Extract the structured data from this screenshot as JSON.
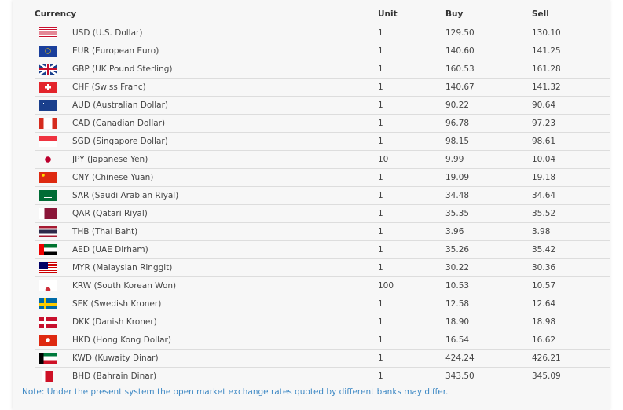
{
  "headers": {
    "currency": "Currency",
    "unit": "Unit",
    "buy": "Buy",
    "sell": "Sell"
  },
  "rows": [
    {
      "flag": "us-flag-icon",
      "name": "USD (U.S. Dollar)",
      "unit": "1",
      "buy": "129.50",
      "sell": "130.10"
    },
    {
      "flag": "eu-flag-icon",
      "name": "EUR (European Euro)",
      "unit": "1",
      "buy": "140.60",
      "sell": "141.25"
    },
    {
      "flag": "uk-flag-icon",
      "name": "GBP (UK Pound Sterling)",
      "unit": "1",
      "buy": "160.53",
      "sell": "161.28"
    },
    {
      "flag": "ch-flag-icon",
      "name": "CHF (Swiss Franc)",
      "unit": "1",
      "buy": "140.67",
      "sell": "141.32"
    },
    {
      "flag": "au-flag-icon",
      "name": "AUD (Australian Dollar)",
      "unit": "1",
      "buy": "90.22",
      "sell": "90.64"
    },
    {
      "flag": "ca-flag-icon",
      "name": "CAD (Canadian Dollar)",
      "unit": "1",
      "buy": "96.78",
      "sell": "97.23"
    },
    {
      "flag": "sg-flag-icon",
      "name": "SGD (Singapore Dollar)",
      "unit": "1",
      "buy": "98.15",
      "sell": "98.61"
    },
    {
      "flag": "jp-flag-icon",
      "name": "JPY (Japanese Yen)",
      "unit": "10",
      "buy": "9.99",
      "sell": "10.04"
    },
    {
      "flag": "cn-flag-icon",
      "name": "CNY (Chinese Yuan)",
      "unit": "1",
      "buy": "19.09",
      "sell": "19.18"
    },
    {
      "flag": "sa-flag-icon",
      "name": "SAR (Saudi Arabian Riyal)",
      "unit": "1",
      "buy": "34.48",
      "sell": "34.64"
    },
    {
      "flag": "qa-flag-icon",
      "name": "QAR (Qatari Riyal)",
      "unit": "1",
      "buy": "35.35",
      "sell": "35.52"
    },
    {
      "flag": "th-flag-icon",
      "name": "THB (Thai Baht)",
      "unit": "1",
      "buy": "3.96",
      "sell": "3.98"
    },
    {
      "flag": "ae-flag-icon",
      "name": "AED (UAE Dirham)",
      "unit": "1",
      "buy": "35.26",
      "sell": "35.42"
    },
    {
      "flag": "my-flag-icon",
      "name": "MYR (Malaysian Ringgit)",
      "unit": "1",
      "buy": "30.22",
      "sell": "30.36"
    },
    {
      "flag": "kr-flag-icon",
      "name": "KRW (South Korean Won)",
      "unit": "100",
      "buy": "10.53",
      "sell": "10.57"
    },
    {
      "flag": "se-flag-icon",
      "name": "SEK (Swedish Kroner)",
      "unit": "1",
      "buy": "12.58",
      "sell": "12.64"
    },
    {
      "flag": "dk-flag-icon",
      "name": "DKK (Danish Kroner)",
      "unit": "1",
      "buy": "18.90",
      "sell": "18.98"
    },
    {
      "flag": "hk-flag-icon",
      "name": "HKD (Hong Kong Dollar)",
      "unit": "1",
      "buy": "16.54",
      "sell": "16.62"
    },
    {
      "flag": "kw-flag-icon",
      "name": "KWD (Kuwaity Dinar)",
      "unit": "1",
      "buy": "424.24",
      "sell": "426.21"
    },
    {
      "flag": "bh-flag-icon",
      "name": "BHD (Bahrain Dinar)",
      "unit": "1",
      "buy": "343.50",
      "sell": "345.09"
    }
  ],
  "note": "Note: Under the present system the open market exchange rates quoted by different banks may differ."
}
